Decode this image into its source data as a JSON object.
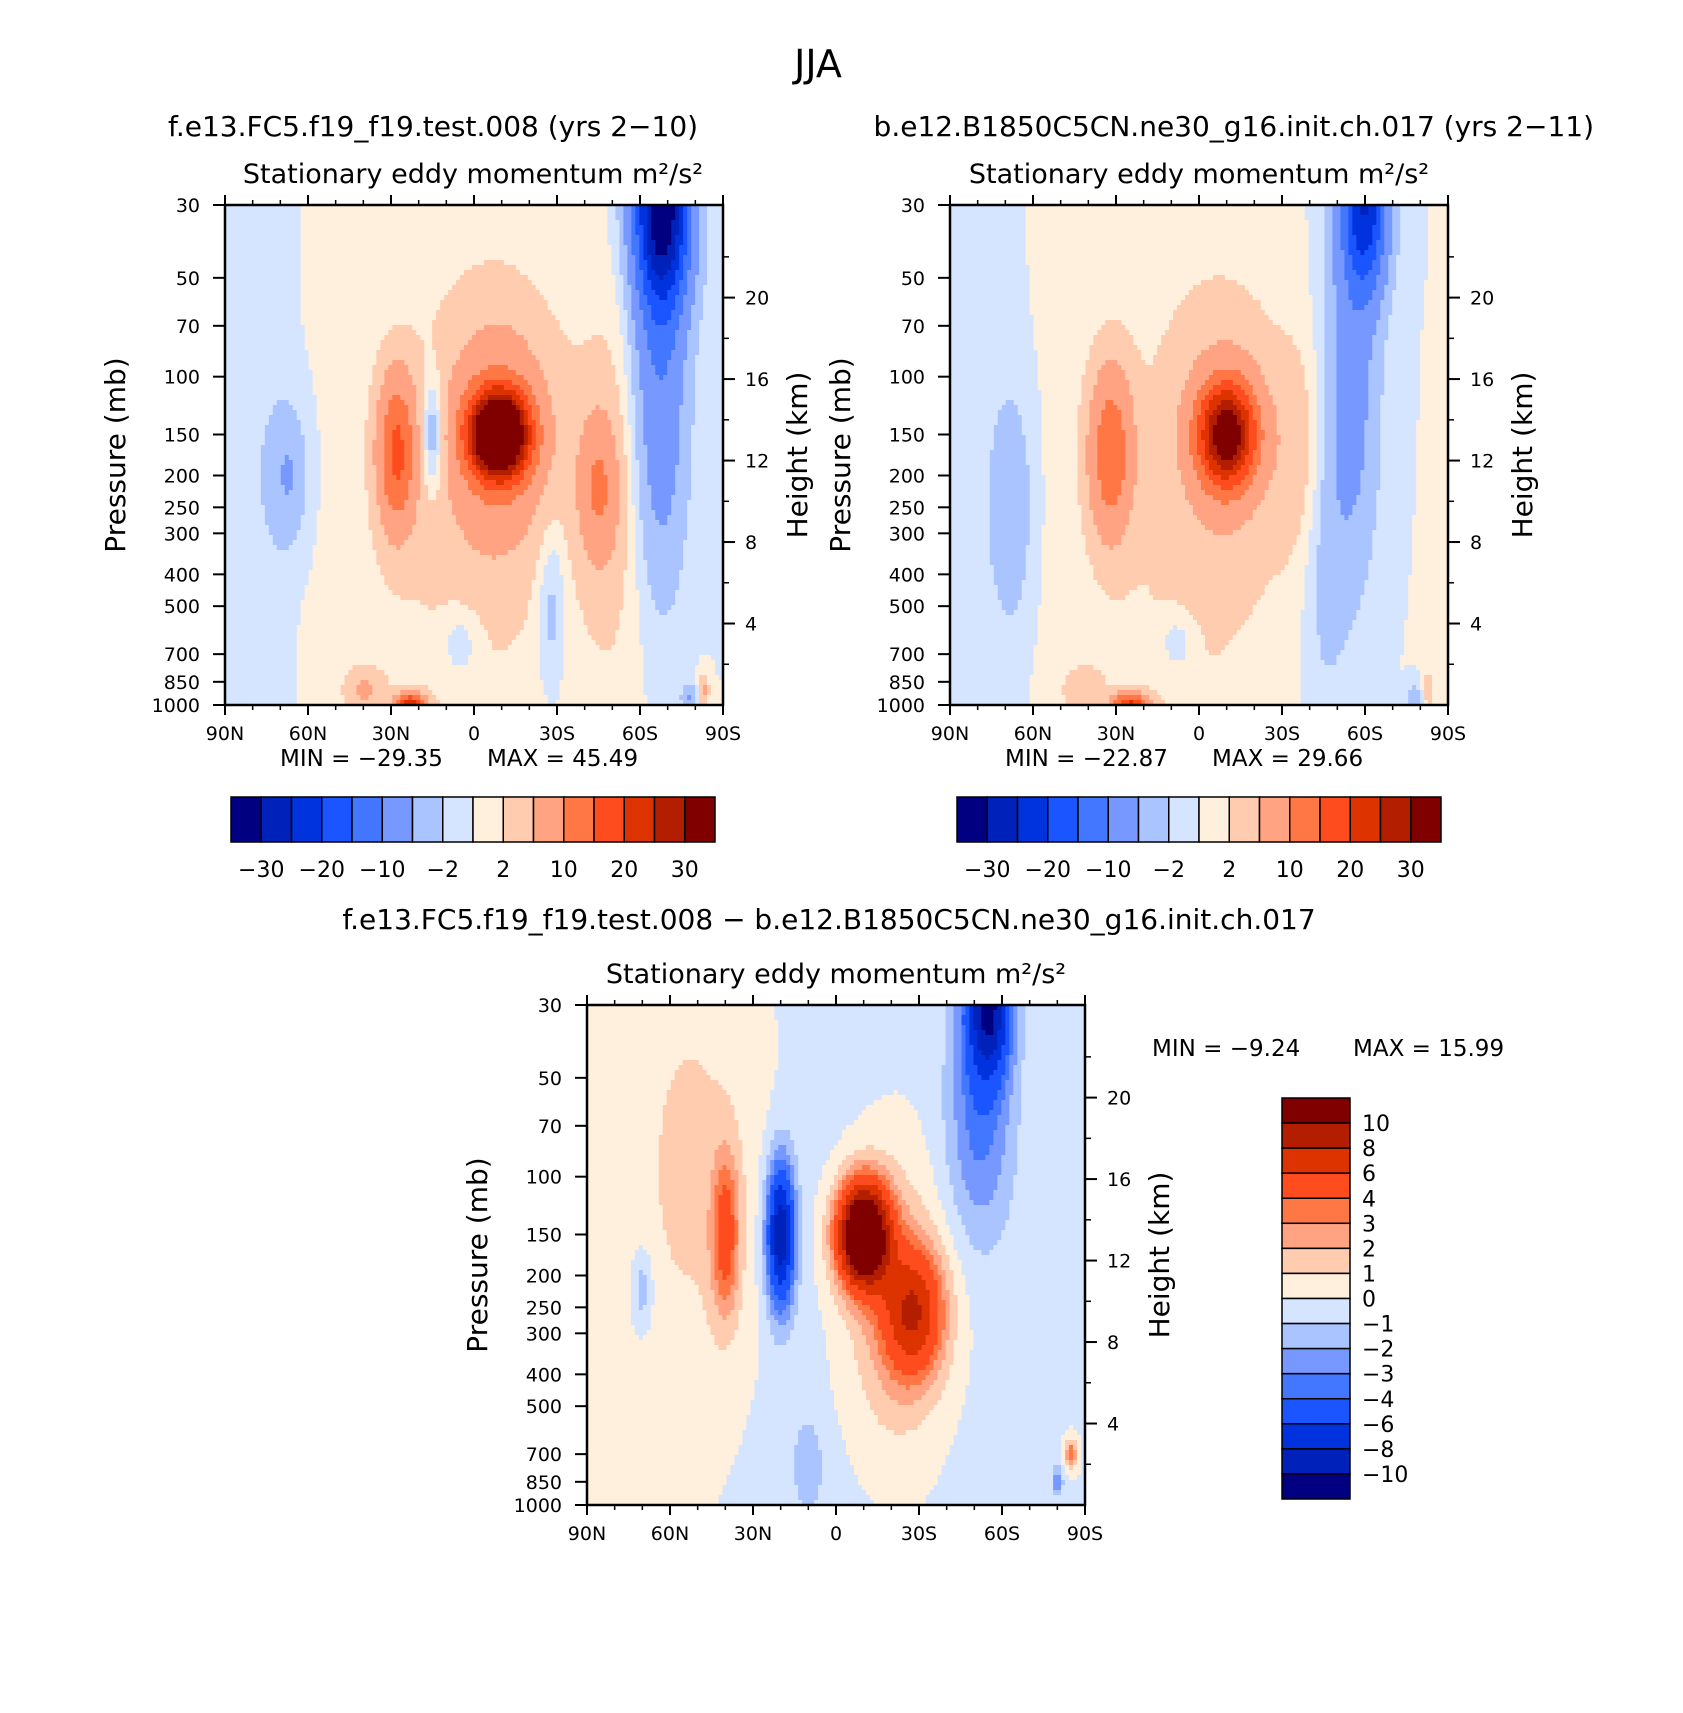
{
  "figure": {
    "title": "JJA",
    "label_a": "f.e13.FC5.f19_f19.test.008 (yrs 2−10)",
    "label_b": "b.e12.B1850C5CN.ne30_g16.init.ch.017 (yrs 2−11)",
    "label_diff": "f.e13.FC5.f19_f19.test.008 − b.e12.B1850C5CN.ne30_g16.init.ch.017"
  },
  "chart_data": [
    {
      "id": "panel-a",
      "type": "heatmap",
      "title": "Stationary eddy momentum",
      "units": "m²/s²",
      "ylabel": "Pressure (mb)",
      "ylabel_right": "Height (km)",
      "x_ticks": [
        "90N",
        "60N",
        "30N",
        "0",
        "30S",
        "60S",
        "90S"
      ],
      "y_ticks": [
        30,
        50,
        70,
        100,
        150,
        200,
        250,
        300,
        400,
        500,
        700,
        850,
        1000
      ],
      "height_ticks": [
        4,
        8,
        12,
        16,
        20
      ],
      "min_label": "MIN =  −29.35",
      "max_label": "MAX =  45.49",
      "min": -29.35,
      "max": 45.49,
      "features": [
        {
          "lat": -9,
          "p": 150,
          "amp": 46,
          "wlat": 10,
          "wp": 0.28
        },
        {
          "lat": -9,
          "p": 150,
          "amp": 9,
          "wlat": 20,
          "wp": 0.85
        },
        {
          "lat": 28,
          "p": 170,
          "amp": 15,
          "wlat": 7,
          "wp": 0.55
        },
        {
          "lat": 15,
          "p": 150,
          "amp": -7,
          "wlat": 4,
          "wp": 0.4
        },
        {
          "lat": -45,
          "p": 220,
          "amp": 8,
          "wlat": 7,
          "wp": 0.5
        },
        {
          "lat": -50,
          "p": 220,
          "amp": 3,
          "wlat": 14,
          "wp": 1.5
        },
        {
          "lat": -68,
          "p": 30,
          "amp": -32,
          "wlat": 10,
          "wp": 0.7
        },
        {
          "lat": -67,
          "p": 110,
          "amp": -9,
          "wlat": 10,
          "wp": 1.4
        },
        {
          "lat": 67,
          "p": 200,
          "amp": -5,
          "wlat": 7,
          "wp": 0.5
        },
        {
          "lat": 80,
          "p": 200,
          "amp": -1.5,
          "wlat": 12,
          "wp": 2.5
        },
        {
          "lat": 23,
          "p": 1000,
          "amp": 22,
          "wlat": 5,
          "wp": 0.08
        },
        {
          "lat": 40,
          "p": 900,
          "amp": 5,
          "wlat": 7,
          "wp": 0.15
        },
        {
          "lat": 5,
          "p": 650,
          "amp": -3,
          "wlat": 7,
          "wp": 0.25
        },
        {
          "lat": -28,
          "p": 500,
          "amp": -4,
          "wlat": 5,
          "wp": 0.6
        },
        {
          "lat": -83,
          "p": 900,
          "amp": 6,
          "wlat": 2,
          "wp": 0.12
        },
        {
          "lat": -78,
          "p": 950,
          "amp": -5,
          "wlat": 3,
          "wp": 0.1
        },
        {
          "lat": 5,
          "p": 400,
          "amp": 2,
          "wlat": 40,
          "wp": 2.5
        }
      ]
    },
    {
      "id": "panel-b",
      "type": "heatmap",
      "title": "Stationary eddy momentum",
      "units": "m²/s²",
      "ylabel": "Pressure (mb)",
      "ylabel_right": "Height (km)",
      "x_ticks": [
        "90N",
        "60N",
        "30N",
        "0",
        "30S",
        "60S",
        "90S"
      ],
      "y_ticks": [
        30,
        50,
        70,
        100,
        150,
        200,
        250,
        300,
        400,
        500,
        700,
        850,
        1000
      ],
      "height_ticks": [
        4,
        8,
        12,
        16,
        20
      ],
      "min_label": "MIN =  −22.87",
      "max_label": "MAX =  29.66",
      "min": -22.87,
      "max": 29.66,
      "features": [
        {
          "lat": -10,
          "p": 150,
          "amp": 30,
          "wlat": 10,
          "wp": 0.35
        },
        {
          "lat": -10,
          "p": 150,
          "amp": 5,
          "wlat": 20,
          "wp": 0.9
        },
        {
          "lat": 32,
          "p": 170,
          "amp": 13,
          "wlat": 8,
          "wp": 0.6
        },
        {
          "lat": -38,
          "p": 170,
          "amp": 3,
          "wlat": 10,
          "wp": 0.8
        },
        {
          "lat": -60,
          "p": 30,
          "amp": -23,
          "wlat": 8,
          "wp": 0.6
        },
        {
          "lat": -55,
          "p": 110,
          "amp": -7,
          "wlat": 10,
          "wp": 1.4
        },
        {
          "lat": -45,
          "p": 350,
          "amp": -3,
          "wlat": 8,
          "wp": 1.2
        },
        {
          "lat": 67,
          "p": 250,
          "amp": -4,
          "wlat": 7,
          "wp": 0.8
        },
        {
          "lat": 80,
          "p": 250,
          "amp": -1.5,
          "wlat": 12,
          "wp": 2.5
        },
        {
          "lat": 25,
          "p": 1000,
          "amp": 20,
          "wlat": 6,
          "wp": 0.08
        },
        {
          "lat": 42,
          "p": 900,
          "amp": 4,
          "wlat": 7,
          "wp": 0.15
        },
        {
          "lat": 8,
          "p": 650,
          "amp": -3,
          "wlat": 6,
          "wp": 0.2
        },
        {
          "lat": -83,
          "p": 900,
          "amp": 5,
          "wlat": 2,
          "wp": 0.12
        },
        {
          "lat": -78,
          "p": 950,
          "amp": -4,
          "wlat": 3,
          "wp": 0.1
        },
        {
          "lat": 5,
          "p": 400,
          "amp": 2,
          "wlat": 40,
          "wp": 2.5
        }
      ]
    },
    {
      "id": "panel-diff",
      "type": "heatmap",
      "title": "Stationary eddy momentum",
      "units": "m²/s²",
      "ylabel": "Pressure (mb)",
      "ylabel_right": "Height (km)",
      "x_ticks": [
        "90N",
        "60N",
        "30N",
        "0",
        "30S",
        "60S",
        "90S"
      ],
      "y_ticks": [
        30,
        50,
        70,
        100,
        150,
        200,
        250,
        300,
        400,
        500,
        700,
        850,
        1000
      ],
      "height_ticks": [
        4,
        8,
        12,
        16,
        20
      ],
      "min_label": "MIN =   −9.24",
      "max_label": "MAX =   15.99",
      "min": -9.24,
      "max": 15.99,
      "features": [
        {
          "lat": -10,
          "p": 150,
          "amp": 16,
          "wlat": 9,
          "wp": 0.35
        },
        {
          "lat": -28,
          "p": 260,
          "amp": 7,
          "wlat": 11,
          "wp": 0.45
        },
        {
          "lat": -20,
          "p": 250,
          "amp": 2.5,
          "wlat": 20,
          "wp": 1.2
        },
        {
          "lat": 20,
          "p": 150,
          "amp": -9.5,
          "wlat": 5,
          "wp": 0.5
        },
        {
          "lat": 40,
          "p": 150,
          "amp": 4.5,
          "wlat": 5,
          "wp": 0.55
        },
        {
          "lat": -55,
          "p": 30,
          "amp": -10,
          "wlat": 8,
          "wp": 0.5
        },
        {
          "lat": -52,
          "p": 70,
          "amp": -3,
          "wlat": 12,
          "wp": 0.8
        },
        {
          "lat": 70,
          "p": 220,
          "amp": -2,
          "wlat": 4,
          "wp": 0.3
        },
        {
          "lat": 50,
          "p": 100,
          "amp": 1.5,
          "wlat": 30,
          "wp": 2.0
        },
        {
          "lat": -85,
          "p": 700,
          "amp": 4,
          "wlat": 2,
          "wp": 0.1
        },
        {
          "lat": -80,
          "p": 850,
          "amp": -3,
          "wlat": 2,
          "wp": 0.1
        },
        {
          "lat": 10,
          "p": 750,
          "amp": -1.5,
          "wlat": 5,
          "wp": 0.3
        },
        {
          "lat": 0,
          "p": 300,
          "amp": -0.7,
          "wlat": 60,
          "wp": 4.0
        }
      ]
    }
  ],
  "colorbars": {
    "top": {
      "levels": [
        -35,
        -30,
        -25,
        -20,
        -15,
        -10,
        -5,
        -2,
        0,
        2,
        5,
        10,
        15,
        20,
        25,
        30
      ],
      "tick_labels": [
        "−30",
        "−20",
        "−10",
        "−2",
        "2",
        "10",
        "20",
        "30"
      ],
      "colors": [
        "#000080",
        "#0022bb",
        "#0033dd",
        "#1a55ff",
        "#4477ff",
        "#7799ff",
        "#aac4ff",
        "#d5e5ff",
        "#fff0dd",
        "#ffccb0",
        "#ffa383",
        "#ff7744",
        "#ff4c1e",
        "#dd3300",
        "#b31e00",
        "#800000"
      ]
    },
    "diff": {
      "levels": [
        -12,
        -10,
        -8,
        -6,
        -4,
        -3,
        -2,
        -1,
        0,
        1,
        2,
        3,
        4,
        6,
        8,
        10
      ],
      "tick_labels": [
        "10",
        "8",
        "6",
        "4",
        "3",
        "2",
        "1",
        "0",
        "−1",
        "−2",
        "−3",
        "−4",
        "−6",
        "−8",
        "−10"
      ],
      "colors": [
        "#000080",
        "#0022bb",
        "#0033dd",
        "#1a55ff",
        "#4477ff",
        "#7799ff",
        "#aac4ff",
        "#d5e5ff",
        "#fff0dd",
        "#ffccb0",
        "#ffa383",
        "#ff7744",
        "#ff4c1e",
        "#dd3300",
        "#b31e00",
        "#800000"
      ]
    }
  }
}
